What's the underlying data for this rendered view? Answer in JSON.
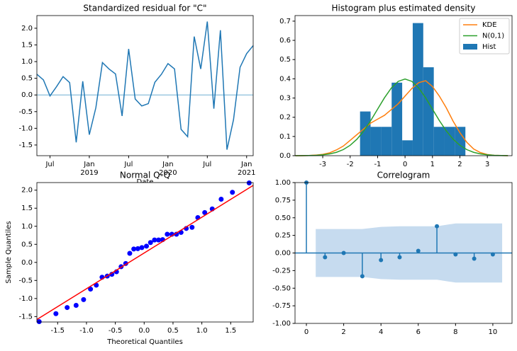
{
  "chart_data": [
    {
      "type": "line",
      "title": "Standardized residual for \"C\"",
      "x_label": "Date",
      "x": [
        "2018-05",
        "2018-06",
        "2018-07",
        "2018-08",
        "2018-09",
        "2018-10",
        "2018-11",
        "2018-12",
        "2019-01",
        "2019-02",
        "2019-03",
        "2019-04",
        "2019-05",
        "2019-06",
        "2019-07",
        "2019-08",
        "2019-09",
        "2019-10",
        "2019-11",
        "2019-12",
        "2020-01",
        "2020-02",
        "2020-03",
        "2020-04",
        "2020-05",
        "2020-06",
        "2020-07",
        "2020-08",
        "2020-09",
        "2020-10",
        "2020-11",
        "2020-12",
        "2021-01",
        "2021-02"
      ],
      "values": [
        0.62,
        0.45,
        -0.03,
        0.25,
        0.55,
        0.37,
        -1.42,
        0.41,
        -1.19,
        -0.38,
        0.97,
        0.78,
        0.63,
        -0.63,
        1.38,
        -0.12,
        -0.33,
        -0.26,
        0.38,
        0.62,
        0.94,
        0.78,
        -1.03,
        -1.25,
        1.75,
        0.78,
        2.2,
        -0.41,
        1.94,
        -1.64,
        -0.74,
        0.83,
        1.24,
        1.48
      ],
      "color": "#1f77b4",
      "hline": 0,
      "hline_color": "#9ecae1",
      "xticks": [
        {
          "value": "2018-07",
          "label": "Jul"
        },
        {
          "value": "2019-01",
          "label": "Jan",
          "year": "2019"
        },
        {
          "value": "2019-07",
          "label": "Jul"
        },
        {
          "value": "2020-01",
          "label": "Jan",
          "year": "2020"
        },
        {
          "value": "2020-07",
          "label": "Jul"
        },
        {
          "value": "2021-01",
          "label": "Jan",
          "year": "2021"
        }
      ],
      "ylim": [
        -1.82,
        2.38
      ],
      "yticks": [
        -1.5,
        {
          "value": -1.0,
          "label": "-1.0"
        },
        -0.5,
        {
          "value": 0.0,
          "label": "0.0"
        },
        0.5,
        {
          "value": 1.0,
          "label": "1.0"
        },
        1.5,
        {
          "value": 2.0,
          "label": "2.0"
        }
      ]
    },
    {
      "type": "histogram",
      "title": "Histogram plus estimated density",
      "bins": [
        -1.64,
        -1.256,
        -0.872,
        -0.488,
        -0.104,
        0.28,
        0.664,
        1.048,
        1.432,
        1.816,
        2.2
      ],
      "hist": {
        "name": "Hist",
        "color": "#1f77b4",
        "values": [
          0.23,
          0.15,
          0.15,
          0.38,
          0.08,
          0.69,
          0.46,
          0.15,
          0.15,
          0.15
        ]
      },
      "x": [
        -4,
        -3.75,
        -3.5,
        -3.25,
        -3,
        -2.75,
        -2.5,
        -2.25,
        -2,
        -1.75,
        -1.5,
        -1.25,
        -1,
        -0.75,
        -0.5,
        -0.25,
        0,
        0.25,
        0.5,
        0.75,
        1,
        1.25,
        1.5,
        1.75,
        2,
        2.25,
        2.5,
        2.75,
        3,
        3.25,
        3.5,
        3.75
      ],
      "series": [
        {
          "name": "KDE",
          "color": "#ff7f0e",
          "values": [
            0,
            0,
            0.001,
            0.003,
            0.007,
            0.015,
            0.03,
            0.05,
            0.08,
            0.11,
            0.14,
            0.17,
            0.19,
            0.21,
            0.24,
            0.27,
            0.31,
            0.35,
            0.38,
            0.39,
            0.36,
            0.31,
            0.25,
            0.18,
            0.12,
            0.07,
            0.035,
            0.016,
            0.006,
            0.002,
            0.001,
            0
          ]
        },
        {
          "name": "N(0,1)",
          "color": "#2ca02c",
          "values": [
            0.0001,
            0.0004,
            0.0009,
            0.002,
            0.0044,
            0.0091,
            0.0175,
            0.0317,
            0.054,
            0.0863,
            0.1295,
            0.1826,
            0.242,
            0.3011,
            0.3521,
            0.3867,
            0.3989,
            0.3867,
            0.3521,
            0.3011,
            0.242,
            0.1826,
            0.1295,
            0.0863,
            0.054,
            0.0317,
            0.0175,
            0.0091,
            0.0044,
            0.002,
            0.0009,
            0.0004
          ]
        }
      ],
      "legend": "upper right",
      "xlim": [
        -4.01,
        3.9
      ],
      "xticks": [
        -3,
        -2,
        -1,
        0,
        1,
        2,
        3
      ],
      "ylim": [
        0,
        0.729
      ],
      "yticks": [
        {
          "value": 0.0,
          "label": "0.0"
        },
        0.1,
        0.2,
        0.3,
        0.4,
        0.5,
        0.6,
        0.7
      ]
    },
    {
      "type": "scatter",
      "title": "Normal Q-Q",
      "x_label": "Theoretical Quantiles",
      "y_label": "Sample Quantiles",
      "x": [
        -1.82,
        -1.53,
        -1.335,
        -1.18,
        -1.05,
        -0.93,
        -0.83,
        -0.73,
        -0.64,
        -0.56,
        -0.48,
        -0.4,
        -0.32,
        -0.25,
        -0.18,
        -0.11,
        -0.04,
        0.04,
        0.11,
        0.18,
        0.25,
        0.32,
        0.4,
        0.48,
        0.56,
        0.64,
        0.73,
        0.83,
        0.93,
        1.05,
        1.18,
        1.335,
        1.53,
        1.82
      ],
      "values": [
        -1.64,
        -1.42,
        -1.25,
        -1.19,
        -1.03,
        -0.74,
        -0.63,
        -0.41,
        -0.38,
        -0.33,
        -0.26,
        -0.12,
        -0.03,
        0.25,
        0.37,
        0.38,
        0.41,
        0.45,
        0.55,
        0.62,
        0.62,
        0.63,
        0.78,
        0.78,
        0.78,
        0.83,
        0.94,
        0.97,
        1.24,
        1.38,
        1.48,
        1.75,
        1.94,
        2.2
      ],
      "color": "#0000ff",
      "line_color": "#ff0000",
      "line_slope": 0.99,
      "line_intercept": 0.26,
      "xlim": [
        -1.86,
        1.89
      ],
      "xticks": [
        -1.5,
        {
          "value": -1.0,
          "label": "-1.0"
        },
        -0.5,
        {
          "value": 0.0,
          "label": "0.0"
        },
        0.5,
        {
          "value": 1.0,
          "label": "1.0"
        },
        1.5
      ],
      "ylim": [
        -1.65,
        2.21
      ],
      "yticks": [
        -1.5,
        {
          "value": -1.0,
          "label": "-1.0"
        },
        -0.5,
        {
          "value": 0.0,
          "label": "0.0"
        },
        0.5,
        {
          "value": 1.0,
          "label": "1.0"
        },
        1.5,
        {
          "value": 2.0,
          "label": "2.0"
        }
      ]
    },
    {
      "type": "stem",
      "title": "Correlogram",
      "x": [
        0,
        1,
        2,
        3,
        4,
        5,
        6,
        7,
        8,
        9,
        10
      ],
      "values": [
        1.0,
        -0.06,
        0.0,
        -0.33,
        -0.1,
        -0.06,
        0.03,
        0.38,
        -0.02,
        -0.08,
        -0.02
      ],
      "color": "#1f77b4",
      "hline": 0,
      "band_x": [
        0.5,
        1,
        2,
        3,
        4,
        5,
        6,
        7,
        8,
        9,
        10,
        10.5
      ],
      "band_upper": [
        0.34,
        0.34,
        0.34,
        0.34,
        0.37,
        0.38,
        0.38,
        0.38,
        0.42,
        0.42,
        0.42,
        0.42
      ],
      "band_lower": [
        -0.34,
        -0.34,
        -0.34,
        -0.34,
        -0.37,
        -0.38,
        -0.38,
        -0.38,
        -0.42,
        -0.42,
        -0.42,
        -0.42
      ],
      "band_color": "#c6dbef",
      "xlim": [
        -0.61,
        11.03
      ],
      "xticks": [
        0,
        2,
        4,
        6,
        8,
        10
      ],
      "ylim": [
        -1.0,
        1.0
      ],
      "yticks": [
        {
          "value": -1.0,
          "label": "-1.00"
        },
        {
          "value": -0.75,
          "label": "-0.75"
        },
        {
          "value": -0.5,
          "label": "-0.50"
        },
        {
          "value": -0.25,
          "label": "-0.25"
        },
        {
          "value": 0.0,
          "label": "0.00"
        },
        {
          "value": 0.25,
          "label": "0.25"
        },
        {
          "value": 0.5,
          "label": "0.50"
        },
        {
          "value": 0.75,
          "label": "0.75"
        },
        {
          "value": 1.0,
          "label": "1.00"
        }
      ]
    }
  ]
}
